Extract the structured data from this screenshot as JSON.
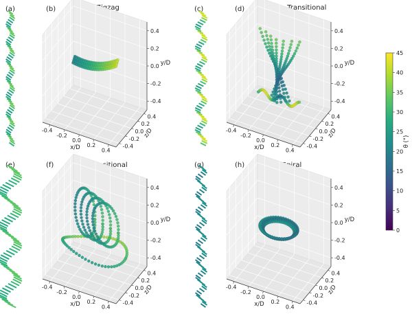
{
  "figure": {
    "panel_letters": [
      "(a)",
      "(b)",
      "(c)",
      "(d)",
      "(e)",
      "(f)",
      "(g)",
      "(h)"
    ],
    "colorbar": {
      "label": "θ (°)",
      "ticks": [
        "0",
        "5",
        "10",
        "15",
        "20",
        "25",
        "30",
        "35",
        "40",
        "45"
      ],
      "colors": [
        "#440154",
        "#472d7b",
        "#3b528b",
        "#2c728e",
        "#21918c",
        "#28ae80",
        "#5ec962",
        "#addc30",
        "#fde725"
      ]
    }
  },
  "chart_data": [
    {
      "panel": "(b)",
      "type": "scatter",
      "projection": "3d",
      "title": "Zigzag",
      "xlabel": "x/D",
      "ylabel": "y/D",
      "zlabel": "z/D",
      "xticks": [
        "-0.4",
        "-0.2",
        "0.0",
        "0.2",
        "0.4"
      ],
      "yticks": [
        "0.4",
        "0.2",
        "0.0",
        "-0.2",
        "-0.4"
      ],
      "zticks": [
        "0.4",
        "0.2",
        "0.0",
        "-0.2",
        "-0.4"
      ],
      "xlim": [
        -0.5,
        0.5
      ],
      "ylim": [
        -0.5,
        0.5
      ],
      "zlim": [
        -0.5,
        0.5
      ],
      "color_variable": "θ (°)",
      "theta_range": [
        20,
        40
      ],
      "pattern": "zigzag"
    },
    {
      "panel": "(d)",
      "type": "scatter",
      "projection": "3d",
      "title": "Zigzag - Transitional",
      "xlabel": "x/D",
      "ylabel": "y/D",
      "zlabel": "z/D",
      "xticks": [
        "-0.4",
        "-0.2",
        "0.0",
        "0.2",
        "0.4"
      ],
      "yticks": [
        "0.4",
        "0.2",
        "0.0",
        "-0.2",
        "-0.4"
      ],
      "zticks": [
        "0.4",
        "0.2",
        "0.0",
        "-0.2",
        "-0.4"
      ],
      "xlim": [
        -0.5,
        0.5
      ],
      "ylim": [
        -0.5,
        0.5
      ],
      "zlim": [
        -0.5,
        0.5
      ],
      "color_variable": "θ (°)",
      "theta_range": [
        15,
        42
      ],
      "pattern": "zigzag-transitional"
    },
    {
      "panel": "(f)",
      "type": "scatter",
      "projection": "3d",
      "title": "Transitional",
      "xlabel": "x/D",
      "ylabel": "y/D",
      "zlabel": "z/D",
      "xticks": [
        "-0.4",
        "-0.2",
        "0.0",
        "0.2",
        "0.4"
      ],
      "yticks": [
        "0.4",
        "0.2",
        "0.0",
        "-0.2",
        "-0.4"
      ],
      "zticks": [
        "0.4",
        "0.2",
        "0.0",
        "-0.2",
        "-0.4"
      ],
      "xlim": [
        -0.5,
        0.5
      ],
      "ylim": [
        -0.5,
        0.5
      ],
      "zlim": [
        -0.5,
        0.5
      ],
      "color_variable": "θ (°)",
      "theta_range": [
        18,
        35
      ],
      "pattern": "transitional"
    },
    {
      "panel": "(h)",
      "type": "scatter",
      "projection": "3d",
      "title": "Spiral",
      "xlabel": "x/D",
      "ylabel": "y/D",
      "zlabel": "z/D",
      "xticks": [
        "-0.4",
        "-0.2",
        "0.0",
        "0.2",
        "0.4"
      ],
      "yticks": [
        "0.4",
        "0.2",
        "0.0",
        "-0.2",
        "-0.4"
      ],
      "zticks": [
        "0.4",
        "0.2",
        "0.0",
        "-0.2",
        "-0.4"
      ],
      "xlim": [
        -0.5,
        0.5
      ],
      "ylim": [
        -0.5,
        0.5
      ],
      "zlim": [
        -0.5,
        0.5
      ],
      "color_variable": "θ (°)",
      "theta_range": [
        20,
        26
      ],
      "pattern": "spiral"
    }
  ]
}
